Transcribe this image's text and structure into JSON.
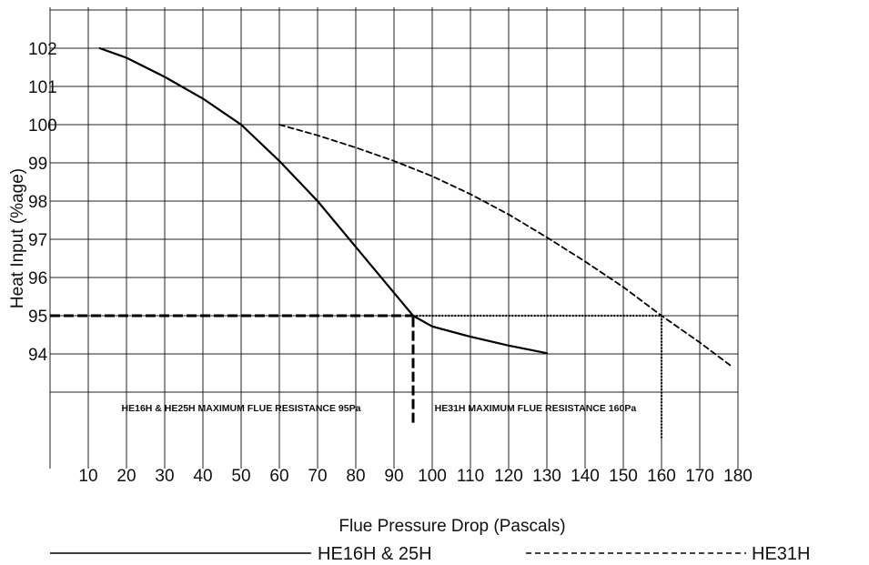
{
  "chart_data": {
    "type": "line",
    "title": "",
    "xlabel": "Flue Pressure Drop (Pascals)",
    "ylabel": "Heat Input (%age)",
    "xlim": [
      0,
      180
    ],
    "ylim": [
      93,
      103
    ],
    "grid": true,
    "x_ticks": [
      "10",
      "20",
      "30",
      "40",
      "50",
      "60",
      "70",
      "80",
      "90",
      "100",
      "110",
      "120",
      "130",
      "140",
      "150",
      "160",
      "170",
      "180"
    ],
    "y_ticks": [
      "94",
      "95",
      "96",
      "97",
      "98",
      "99",
      "100",
      "101",
      "102"
    ],
    "series": [
      {
        "name": "HE16H & 25H",
        "style": "solid",
        "color": "#000000",
        "points": [
          [
            13,
            102
          ],
          [
            20,
            101.75
          ],
          [
            30,
            101.25
          ],
          [
            40,
            100.68
          ],
          [
            50,
            100
          ],
          [
            60,
            99.05
          ],
          [
            70,
            98
          ],
          [
            80,
            96.8
          ],
          [
            90,
            95.6
          ],
          [
            95,
            95
          ],
          [
            100,
            94.72
          ],
          [
            110,
            94.45
          ],
          [
            120,
            94.22
          ],
          [
            130,
            94.02
          ]
        ]
      },
      {
        "name": "HE31H",
        "style": "dashed",
        "color": "#000000",
        "points": [
          [
            60,
            100
          ],
          [
            70,
            99.72
          ],
          [
            80,
            99.4
          ],
          [
            90,
            99.05
          ],
          [
            100,
            98.65
          ],
          [
            110,
            98.18
          ],
          [
            120,
            97.65
          ],
          [
            130,
            97.05
          ],
          [
            140,
            96.42
          ],
          [
            150,
            95.75
          ],
          [
            160,
            95
          ],
          [
            170,
            94.3
          ],
          [
            178,
            93.7
          ]
        ]
      }
    ],
    "reference_lines": [
      {
        "type": "horizontal",
        "y": 95,
        "x_from": 0,
        "x_to": 95,
        "style": "bold-dashed"
      },
      {
        "type": "vertical",
        "x": 95,
        "y_from": 92.2,
        "y_to": 95,
        "style": "bold-dashed"
      },
      {
        "type": "horizontal",
        "y": 95,
        "x_from": 95,
        "x_to": 160,
        "style": "dotted"
      },
      {
        "type": "vertical",
        "x": 160,
        "y_from": 91.8,
        "y_to": 95,
        "style": "dotted"
      }
    ],
    "annotations": [
      {
        "text": "HE16H & HE25H MAXIMUM FLUE RESISTANCE 95Pa",
        "x": 50,
        "y": 92.6
      },
      {
        "text": "HE31H MAXIMUM FLUE RESISTANCE 160Pa",
        "x": 127,
        "y": 92.6
      }
    ],
    "legend": {
      "placement": "bottom",
      "entries": [
        {
          "label": "HE16H & 25H",
          "style": "solid"
        },
        {
          "label": "HE31H",
          "style": "dashed"
        }
      ]
    }
  }
}
